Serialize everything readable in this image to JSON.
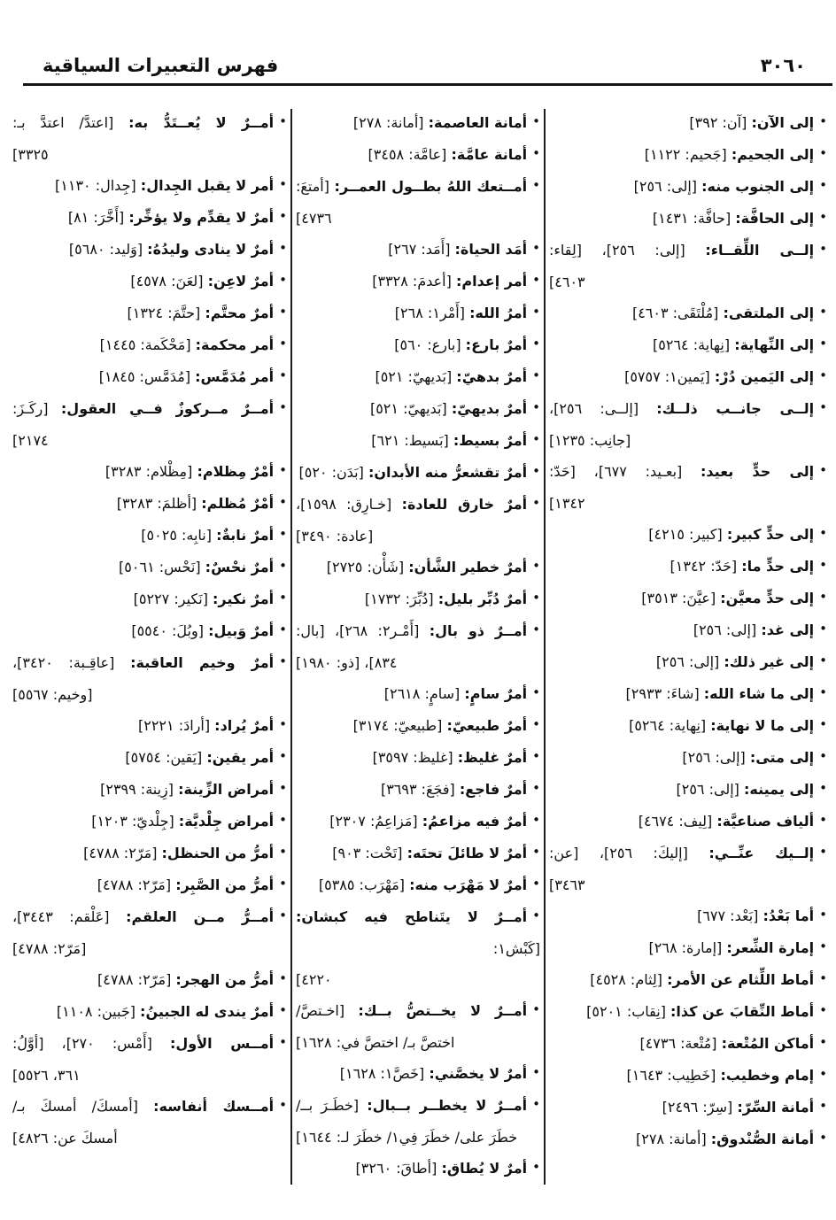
{
  "colors": {
    "ink": "#101010",
    "paper": "#ffffff"
  },
  "header": {
    "title": "فهرس التعبيرات السياقية",
    "page_number": "٣٠٦٠"
  },
  "index": {
    "columns": [
      {
        "position": "right",
        "entries": [
          {
            "term": "إلى الآن:",
            "ref": "[آن: ٣٩٢]"
          },
          {
            "term": "إلى الجحيم:",
            "ref": "[جَحيم: ١١٢٢]"
          },
          {
            "term": "إلى الجنوب منه:",
            "ref": "[إلى: ٢٥٦]"
          },
          {
            "term": "إلى الحافَّة:",
            "ref": "[حافَّة: ١٤٣١]"
          },
          {
            "term": "إلــى اللِّقــاء:",
            "ref": "[إلى: ٢٥٦]، [لِقاء:",
            "cont": "٤٦٠٣]"
          },
          {
            "term": "إلى الملتقى:",
            "ref": "[مُلْتَقَى: ٤٦٠٣]"
          },
          {
            "term": "إلى النِّهاية:",
            "ref": "[نِهاية: ٥٢٦٤]"
          },
          {
            "term": "إلى اليَمين دُرْ:",
            "ref": "[يَمين١: ٥٧٥٧]"
          },
          {
            "term": "إلــى جانــب ذلــك:",
            "ref": "[إلــى: ٢٥٦]،",
            "cont": "[جانِب: ١٢٣٥]"
          },
          {
            "term": "إلى حدٍّ بعيد:",
            "ref": "[بعـيد: ٦٧٧]، [حَدّ:",
            "cont": "١٣٤٢]"
          },
          {
            "term": "إلى حدٍّ كبير:",
            "ref": "[كبير: ٤٢١٥]"
          },
          {
            "term": "إلى حدٍّ ما:",
            "ref": "[حَدّ: ١٣٤٢]"
          },
          {
            "term": "إلى حدٍّ معيَّن:",
            "ref": "[عيَّنَ: ٣٥١٣]"
          },
          {
            "term": "إلى غد:",
            "ref": "[إلى: ٢٥٦]"
          },
          {
            "term": "إلى غير ذلك:",
            "ref": "[إلى: ٢٥٦]"
          },
          {
            "term": "إلى ما شاء الله:",
            "ref": "[شاءَ: ٢٩٣٣]"
          },
          {
            "term": "إلى ما لا نهاية:",
            "ref": "[نِهاية: ٥٢٦٤]"
          },
          {
            "term": "إلى متى:",
            "ref": "[إلى: ٢٥٦]"
          },
          {
            "term": "إلى يمينه:",
            "ref": "[إلى: ٢٥٦]"
          },
          {
            "term": "ألياف صناعيَّة:",
            "ref": "[لِيف: ٤٦٧٤]"
          },
          {
            "term": "إلــيك عنِّــي:",
            "ref": "[إليكَ: ٢٥٦]، [عن:",
            "cont": "٣٤٦٣]"
          },
          {
            "term": "أما بَعْدُ:",
            "ref": "[بَعْد: ٦٧٧]"
          },
          {
            "term": "إمارة الشِّعر:",
            "ref": "[إمارة: ٢٦٨]"
          },
          {
            "term": "أماط اللِّثام عن الأمر:",
            "ref": "[لِثام: ٤٥٢٨]"
          },
          {
            "term": "أماط النِّقابَ عن كذا:",
            "ref": "[نِقاب: ٥٢٠١]"
          },
          {
            "term": "أماكن المُتْعة:",
            "ref": "[مُتْعة: ٤٧٣٦]"
          },
          {
            "term": "إمام وخطيب:",
            "ref": "[خَطِيب: ١٦٤٣]"
          },
          {
            "term": "أمانة السِّرّ:",
            "ref": "[سِرّ: ٢٤٩٦]"
          },
          {
            "term": "أمانة الصُّنْدوق:",
            "ref": "[أمانة: ٢٧٨]"
          }
        ]
      },
      {
        "position": "middle",
        "entries": [
          {
            "term": "أمانة العاصمة:",
            "ref": "[أمانة: ٢٧٨]"
          },
          {
            "term": "أمانة عامَّة:",
            "ref": "[عامَّة: ٣٤٥٨]"
          },
          {
            "term": "أمــتعك اللهُ بطــول العمــر:",
            "ref": "[أمتعَ:",
            "cont": "٤٧٣٦]"
          },
          {
            "term": "أمَد الحياة:",
            "ref": "[أَمَد: ٢٦٧]"
          },
          {
            "term": "أمر إعدام:",
            "ref": "[أعدمَ: ٣٣٢٨]"
          },
          {
            "term": "أمرُ الله:",
            "ref": "[أَمْر١: ٢٦٨]"
          },
          {
            "term": "أمرٌ بارع:",
            "ref": "[بارع: ٥٦٠]"
          },
          {
            "term": "أمرٌ بدهيّ:",
            "ref": "[بَديهيّ: ٥٢١]"
          },
          {
            "term": "أمرٌ بديهيّ:",
            "ref": "[بَديهيّ: ٥٢١]"
          },
          {
            "term": "أمرٌ بسيط:",
            "ref": "[بَسيط: ٦٢١]"
          },
          {
            "term": "أمرٌ تقشعرُّ منه الأبدان:",
            "ref": "[بَدَن: ٥٢٠]"
          },
          {
            "term": "أمرٌ خارق للعادة:",
            "ref": "[خـارِق: ١٥٩٨]،",
            "cont": "[عادة: ٣٤٩٠]"
          },
          {
            "term": "أمرٌ خطير الشَّأن:",
            "ref": "[شَأْن: ٢٧٢٥]"
          },
          {
            "term": "أمرٌ دُبِّر بليل:",
            "ref": "[دُبِّرَ: ١٧٣٢]"
          },
          {
            "term": "أمــرٌ ذو بال:",
            "ref": "[أَمْـر٢: ٢٦٨]، [بال:",
            "cont": "٨٣٤]، [ذو: ١٩٨٠]"
          },
          {
            "term": "أمرٌ سامٍ:",
            "ref": "[سامٍ: ٢٦١٨]"
          },
          {
            "term": "أمرٌ طبيعيّ:",
            "ref": "[طبيعيّ: ٣١٧٤]"
          },
          {
            "term": "أمرٌ غليظ:",
            "ref": "[غليظ: ٣٥٩٧]"
          },
          {
            "term": "أمرٌ فاجع:",
            "ref": "[فجَعَ: ٣٦٩٣]"
          },
          {
            "term": "أمرٌ فيه مزاعمُ:",
            "ref": "[مَزاعِمُ: ٢٣٠٧]"
          },
          {
            "term": "أمرٌ لا طائلَ تحتَه:",
            "ref": "[تَحْت: ٩٠٣]"
          },
          {
            "term": "أمرٌ لا مَهْرَب منه:",
            "ref": "[مَهْرَب: ٥٣٨٥]"
          },
          {
            "term": "أمــرٌ لا يتَناطح فيه كبشان:",
            "ref": "[كَبْش١:",
            "cont": "٤٢٢٠]"
          },
          {
            "term": "أمــرٌ لا يخــتصُّ بــك:",
            "ref": "[اخـتصَّ/",
            "cont": "اختصَّ بـ/ اختصَّ في: ١٦٢٨]"
          },
          {
            "term": "أمرٌ لا يخصَّني:",
            "ref": "[خَصَّ١: ١٦٢٨]"
          },
          {
            "term": "أمــرٌ لا يخطــر بــبال:",
            "ref": "[خطَـرَ بــ/",
            "cont": "خطَرَ على/ خطَرَ فِي١/ خطَرَ لـ: ١٦٤٤]"
          },
          {
            "term": "أمرٌ لا يُطاق:",
            "ref": "[أطاقَ: ٣٢٦٠]"
          }
        ]
      },
      {
        "position": "left",
        "entries": [
          {
            "term": "أمــرٌ لا يُعــتَدُّ به:",
            "ref": "[اعتدَّ/ اعتدَّ بـ:",
            "cont": "٣٣٢٥]"
          },
          {
            "term": "أمر لا يقبل الجِدال:",
            "ref": "[جِدال: ١١٣٠]"
          },
          {
            "term": "أمرٌ لا يقدِّم ولا يؤخِّر:",
            "ref": "[أَخَّرَ: ٨١]"
          },
          {
            "term": "أمرٌ لا ينادى وليدُهُ:",
            "ref": "[وَليد: ٥٦٨٠]"
          },
          {
            "term": "أمرٌ لاعِن:",
            "ref": "[لعَنَ: ٤٥٧٨]"
          },
          {
            "term": "أمرٌ محتَّم:",
            "ref": "[حتَّمَ: ١٣٢٤]"
          },
          {
            "term": "أمر محكمة:",
            "ref": "[مَحْكَمة: ١٤٤٥]"
          },
          {
            "term": "أمر مُدَمَّس:",
            "ref": "[مُدَمَّس: ١٨٤٥]"
          },
          {
            "term": "أمــرٌ مــركوزٌ فــي العقول:",
            "ref": "[ركَـزَ:",
            "cont": "٢١٧٤]"
          },
          {
            "term": "أمْرٌ مِظلام:",
            "ref": "[مِظْلام: ٣٢٨٣]"
          },
          {
            "term": "أمْرٌ مُظلم:",
            "ref": "[أظلمَ: ٣٢٨٣]"
          },
          {
            "term": "أمرٌ نابةٌ:",
            "ref": "[نابِه: ٥٠٢٥]"
          },
          {
            "term": "أمرٌ نحْسٌ:",
            "ref": "[نَحْس: ٥٠٦١]"
          },
          {
            "term": "أمرٌ نكير:",
            "ref": "[نَكير: ٥٢٢٧]"
          },
          {
            "term": "أمرٌ وَبيل:",
            "ref": "[وبُلَ: ٥٥٤٠]"
          },
          {
            "term": "أمرٌ وخيم العاقبة:",
            "ref": "[عاقِـبة: ٣٤٢٠]،",
            "cont": "[وخيم: ٥٥٦٧]"
          },
          {
            "term": "أمرٌ يُراد:",
            "ref": "[أرادَ: ٢٢٢١]"
          },
          {
            "term": "أمر يقين:",
            "ref": "[يَقين: ٥٧٥٤]"
          },
          {
            "term": "أمراض الزِّينة:",
            "ref": "[زِينة: ٢٣٩٩]"
          },
          {
            "term": "أمراض جِلْديَّة:",
            "ref": "[جِلْديّ: ١٢٠٣]"
          },
          {
            "term": "أمرُّ من الحنظل:",
            "ref": "[مَرّ٢: ٤٧٨٨]"
          },
          {
            "term": "أمرُّ من الصَّبِر:",
            "ref": "[مَرّ٢: ٤٧٨٨]"
          },
          {
            "term": "أمــرُّ مــن العلقم:",
            "ref": "[عَلْقم: ٣٤٤٣]،",
            "cont": "[مَرّ٢: ٤٧٨٨]"
          },
          {
            "term": "أمرُّ من الهجر:",
            "ref": "[مَرّ٢: ٤٧٨٨]"
          },
          {
            "term": "أمرٌ يندى له الجبينُ:",
            "ref": "[جَبين: ١١٠٨]"
          },
          {
            "term": "أمــس الأول:",
            "ref": "[أَمْس: ٢٧٠]، [أوَّلُ:",
            "cont": "٣٦١، ٥٥٢٦]"
          },
          {
            "term": "أمــسك أنفاسه:",
            "ref": "[أمسكَ/ أمسكَ بـ/",
            "cont": "أمسكَ عن: ٤٨٢٦]"
          }
        ]
      }
    ]
  }
}
